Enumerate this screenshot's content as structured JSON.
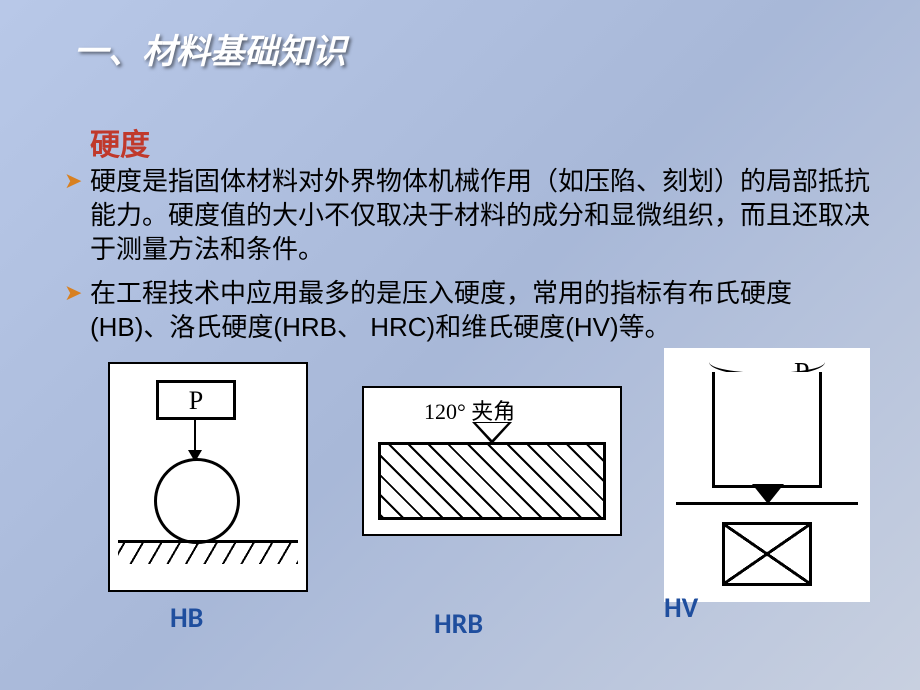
{
  "title": "一、材料基础知识",
  "subtitle": "硬度",
  "bullets": [
    "硬度是指固体材料对外界物体机械作用（如压陷、刻划）的局部抵抗能力。硬度值的大小不仅取决于材料的成分和显微组织，而且还取决于测量方法和条件。",
    "在工程技术中应用最多的是压入硬度，常用的指标有布氏硬度(HB)、洛氏硬度(HRB、 HRC)和维氏硬度(HV)等。"
  ],
  "diagrams": {
    "hb": {
      "P_label": "P",
      "caption": "HB"
    },
    "hrb": {
      "angle_label": "120° 夹角",
      "caption": "HRB"
    },
    "hv": {
      "P_label": "P",
      "caption": "HV"
    }
  },
  "colors": {
    "accent_title": "#ffffff",
    "accent_subtitle": "#c0392b",
    "bullet_marker": "#d88020",
    "caption": "#1f4e9e",
    "bg_start": "#b8c8e8",
    "bg_end": "#c8d0e0"
  }
}
